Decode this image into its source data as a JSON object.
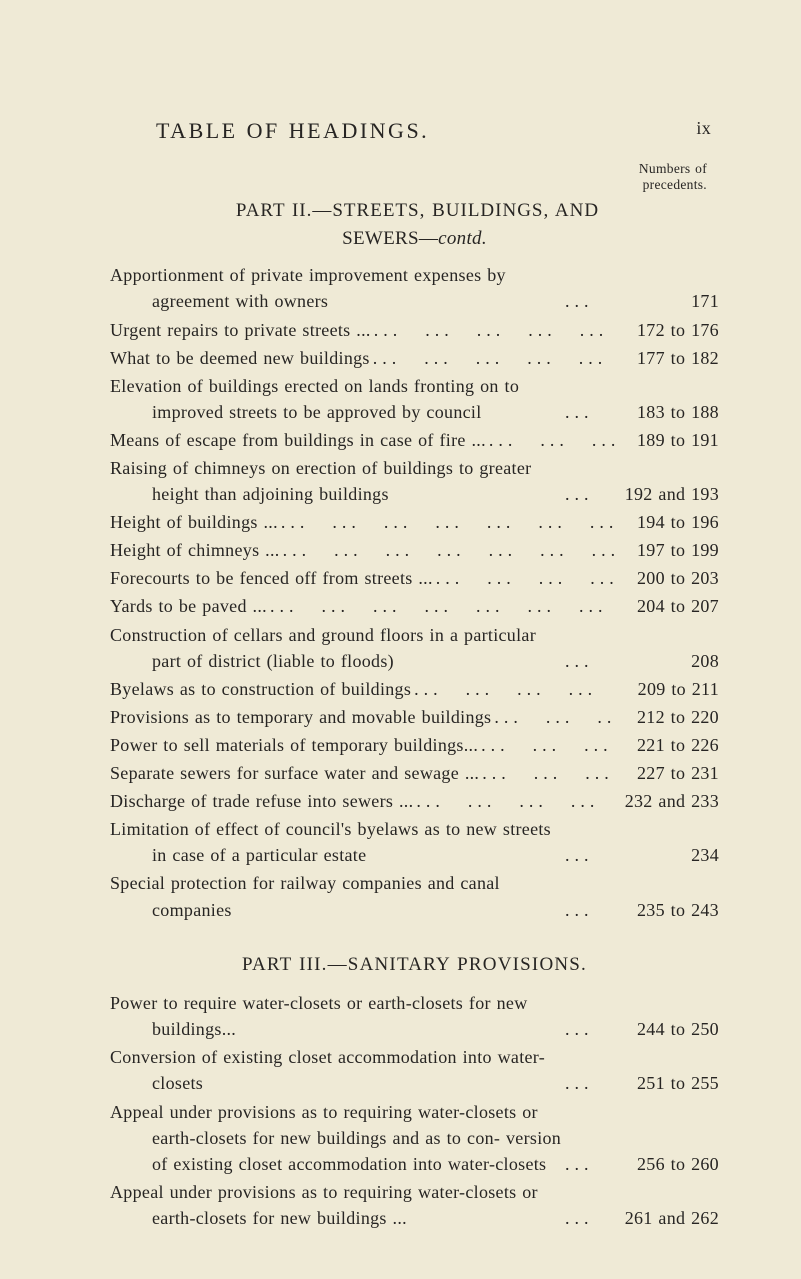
{
  "page": {
    "bg_color": "#efead6",
    "text_color": "#272523",
    "header_title": "TABLE OF HEADINGS.",
    "page_number_roman": "ix",
    "preface_note_line1": "Numbers of",
    "preface_note_line2": "precedents."
  },
  "part2": {
    "title_line": "PART II.—STREETS, BUILDINGS, AND",
    "subhead_plain": "SEWERS—",
    "subhead_italic": "contd.",
    "entries": [
      {
        "text": "Apportionment of private improvement expenses by agreement with owners",
        "range": "171"
      },
      {
        "text": "Urgent repairs to private streets ...",
        "range": "172 to 176"
      },
      {
        "text": "What to be deemed new buildings",
        "range": "177 to 182"
      },
      {
        "text": "Elevation of buildings erected on lands fronting on to improved streets to be approved by council",
        "range": "183 to 188"
      },
      {
        "text": "Means of escape from buildings in case of fire ...",
        "range": "189 to 191"
      },
      {
        "text": "Raising of chimneys on erection of buildings to greater height than adjoining buildings",
        "range": "192 and 193"
      },
      {
        "text": "Height of buildings ...",
        "range": "194 to 196"
      },
      {
        "text": "Height of chimneys ...",
        "range": "197 to 199"
      },
      {
        "text": "Forecourts to be fenced off from streets ...",
        "range": "200 to 203"
      },
      {
        "text": "Yards to be paved ...",
        "range": "204 to 207"
      },
      {
        "text": "Construction of cellars and ground floors in a particular part of district (liable to floods)",
        "range": "208"
      },
      {
        "text": "Byelaws as to construction of buildings",
        "range": "209 to 211"
      },
      {
        "text": "Provisions as to temporary and movable buildings",
        "range": "212 to 220"
      },
      {
        "text": "Power to sell materials of temporary buildings...",
        "range": "221 to 226"
      },
      {
        "text": "Separate sewers for surface water and sewage ...",
        "range": "227 to 231"
      },
      {
        "text": "Discharge of trade refuse into sewers ...",
        "range": "232 and 233"
      },
      {
        "text": "Limitation of effect of council's byelaws as to new streets in case of a particular estate",
        "range": "234"
      },
      {
        "text": "Special protection for railway companies and canal companies",
        "range": "235 to 243"
      }
    ]
  },
  "part3": {
    "title": "PART III.—SANITARY PROVISIONS.",
    "entries": [
      {
        "text": "Power to require water-closets or earth-closets for new buildings...",
        "range": "244 to 250"
      },
      {
        "text": "Conversion of existing closet accommodation into water-closets",
        "range": "251 to 255"
      },
      {
        "text": "Appeal under provisions as to requiring water-closets or earth-closets for new buildings and as to con- version of existing closet accommodation into water-closets",
        "range": "256 to 260"
      },
      {
        "text": "Appeal under provisions as to requiring water-closets or earth-closets for new buildings ...",
        "range": "261 and 262"
      }
    ]
  },
  "leader_dots": "..."
}
